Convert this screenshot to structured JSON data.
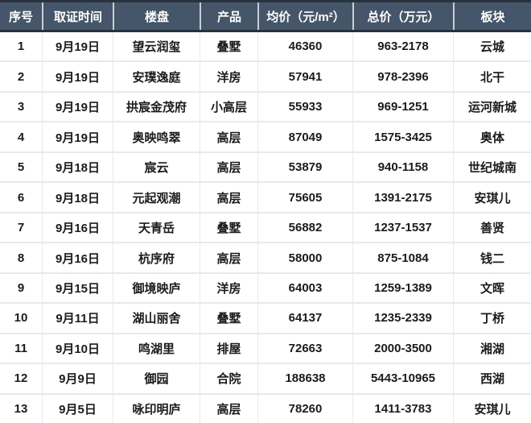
{
  "colors": {
    "header_bg": "#46566A",
    "header_text": "#FFFFFF",
    "header_outer_border": "#28323F",
    "header_separator": "#C9CED4",
    "body_bg": "#FFFFFF",
    "body_grid_line": "#E7EAEC",
    "body_text": "#1B1B1B"
  },
  "table": {
    "columns": [
      {
        "key": "no",
        "label": "序号"
      },
      {
        "key": "date",
        "label": "取证时间"
      },
      {
        "key": "name",
        "label": "楼盘"
      },
      {
        "key": "product",
        "label": "产品"
      },
      {
        "key": "avg_price",
        "label": "均价（元/m²）"
      },
      {
        "key": "total_price",
        "label": "总价（万元）"
      },
      {
        "key": "district",
        "label": "板块"
      }
    ],
    "rows": [
      {
        "no": "1",
        "date": "9月19日",
        "name": "望云润玺",
        "product": "叠墅",
        "avg_price": "46360",
        "total_price": "963-2178",
        "district": "云城"
      },
      {
        "no": "2",
        "date": "9月19日",
        "name": "安璞逸庭",
        "product": "洋房",
        "avg_price": "57941",
        "total_price": "978-2396",
        "district": "北干"
      },
      {
        "no": "3",
        "date": "9月19日",
        "name": "拱宸金茂府",
        "product": "小高层",
        "avg_price": "55933",
        "total_price": "969-1251",
        "district": "运河新城"
      },
      {
        "no": "4",
        "date": "9月19日",
        "name": "奥映鸣翠",
        "product": "高层",
        "avg_price": "87049",
        "total_price": "1575-3425",
        "district": "奥体"
      },
      {
        "no": "5",
        "date": "9月18日",
        "name": "宸云",
        "product": "高层",
        "avg_price": "53879",
        "total_price": "940-1158",
        "district": "世纪城南"
      },
      {
        "no": "6",
        "date": "9月18日",
        "name": "元起观潮",
        "product": "高层",
        "avg_price": "75605",
        "total_price": "1391-2175",
        "district": "安琪儿"
      },
      {
        "no": "7",
        "date": "9月16日",
        "name": "天青岳",
        "product": "叠墅",
        "avg_price": "56882",
        "total_price": "1237-1537",
        "district": "善贤"
      },
      {
        "no": "8",
        "date": "9月16日",
        "name": "杭序府",
        "product": "高层",
        "avg_price": "58000",
        "total_price": "875-1084",
        "district": "钱二"
      },
      {
        "no": "9",
        "date": "9月15日",
        "name": "御境映庐",
        "product": "洋房",
        "avg_price": "64003",
        "total_price": "1259-1389",
        "district": "文晖"
      },
      {
        "no": "10",
        "date": "9月11日",
        "name": "湖山丽舍",
        "product": "叠墅",
        "avg_price": "64137",
        "total_price": "1235-2339",
        "district": "丁桥"
      },
      {
        "no": "11",
        "date": "9月10日",
        "name": "鸣湖里",
        "product": "排屋",
        "avg_price": "72663",
        "total_price": "2000-3500",
        "district": "湘湖"
      },
      {
        "no": "12",
        "date": "9月9日",
        "name": "御园",
        "product": "合院",
        "avg_price": "188638",
        "total_price": "5443-10965",
        "district": "西湖"
      },
      {
        "no": "13",
        "date": "9月5日",
        "name": "咏印明庐",
        "product": "高层",
        "avg_price": "78260",
        "total_price": "1411-3783",
        "district": "安琪儿"
      }
    ]
  },
  "chart_data": {
    "type": "table",
    "columns": [
      "序号",
      "取证时间",
      "楼盘",
      "产品",
      "均价（元/m²）",
      "总价（万元）",
      "板块"
    ],
    "rows": [
      [
        "1",
        "9月19日",
        "望云润玺",
        "叠墅",
        46360,
        "963-2178",
        "云城"
      ],
      [
        "2",
        "9月19日",
        "安璞逸庭",
        "洋房",
        57941,
        "978-2396",
        "北干"
      ],
      [
        "3",
        "9月19日",
        "拱宸金茂府",
        "小高层",
        55933,
        "969-1251",
        "运河新城"
      ],
      [
        "4",
        "9月19日",
        "奥映鸣翠",
        "高层",
        87049,
        "1575-3425",
        "奥体"
      ],
      [
        "5",
        "9月18日",
        "宸云",
        "高层",
        53879,
        "940-1158",
        "世纪城南"
      ],
      [
        "6",
        "9月18日",
        "元起观潮",
        "高层",
        75605,
        "1391-2175",
        "安琪儿"
      ],
      [
        "7",
        "9月16日",
        "天青岳",
        "叠墅",
        56882,
        "1237-1537",
        "善贤"
      ],
      [
        "8",
        "9月16日",
        "杭序府",
        "高层",
        58000,
        "875-1084",
        "钱二"
      ],
      [
        "9",
        "9月15日",
        "御境映庐",
        "洋房",
        64003,
        "1259-1389",
        "文晖"
      ],
      [
        "10",
        "9月11日",
        "湖山丽舍",
        "叠墅",
        64137,
        "1235-2339",
        "丁桥"
      ],
      [
        "11",
        "9月10日",
        "鸣湖里",
        "排屋",
        72663,
        "2000-3500",
        "湘湖"
      ],
      [
        "12",
        "9月9日",
        "御园",
        "合院",
        188638,
        "5443-10965",
        "西湖"
      ],
      [
        "13",
        "9月5日",
        "咏印明庐",
        "高层",
        78260,
        "1411-3783",
        "安琪儿"
      ]
    ]
  }
}
